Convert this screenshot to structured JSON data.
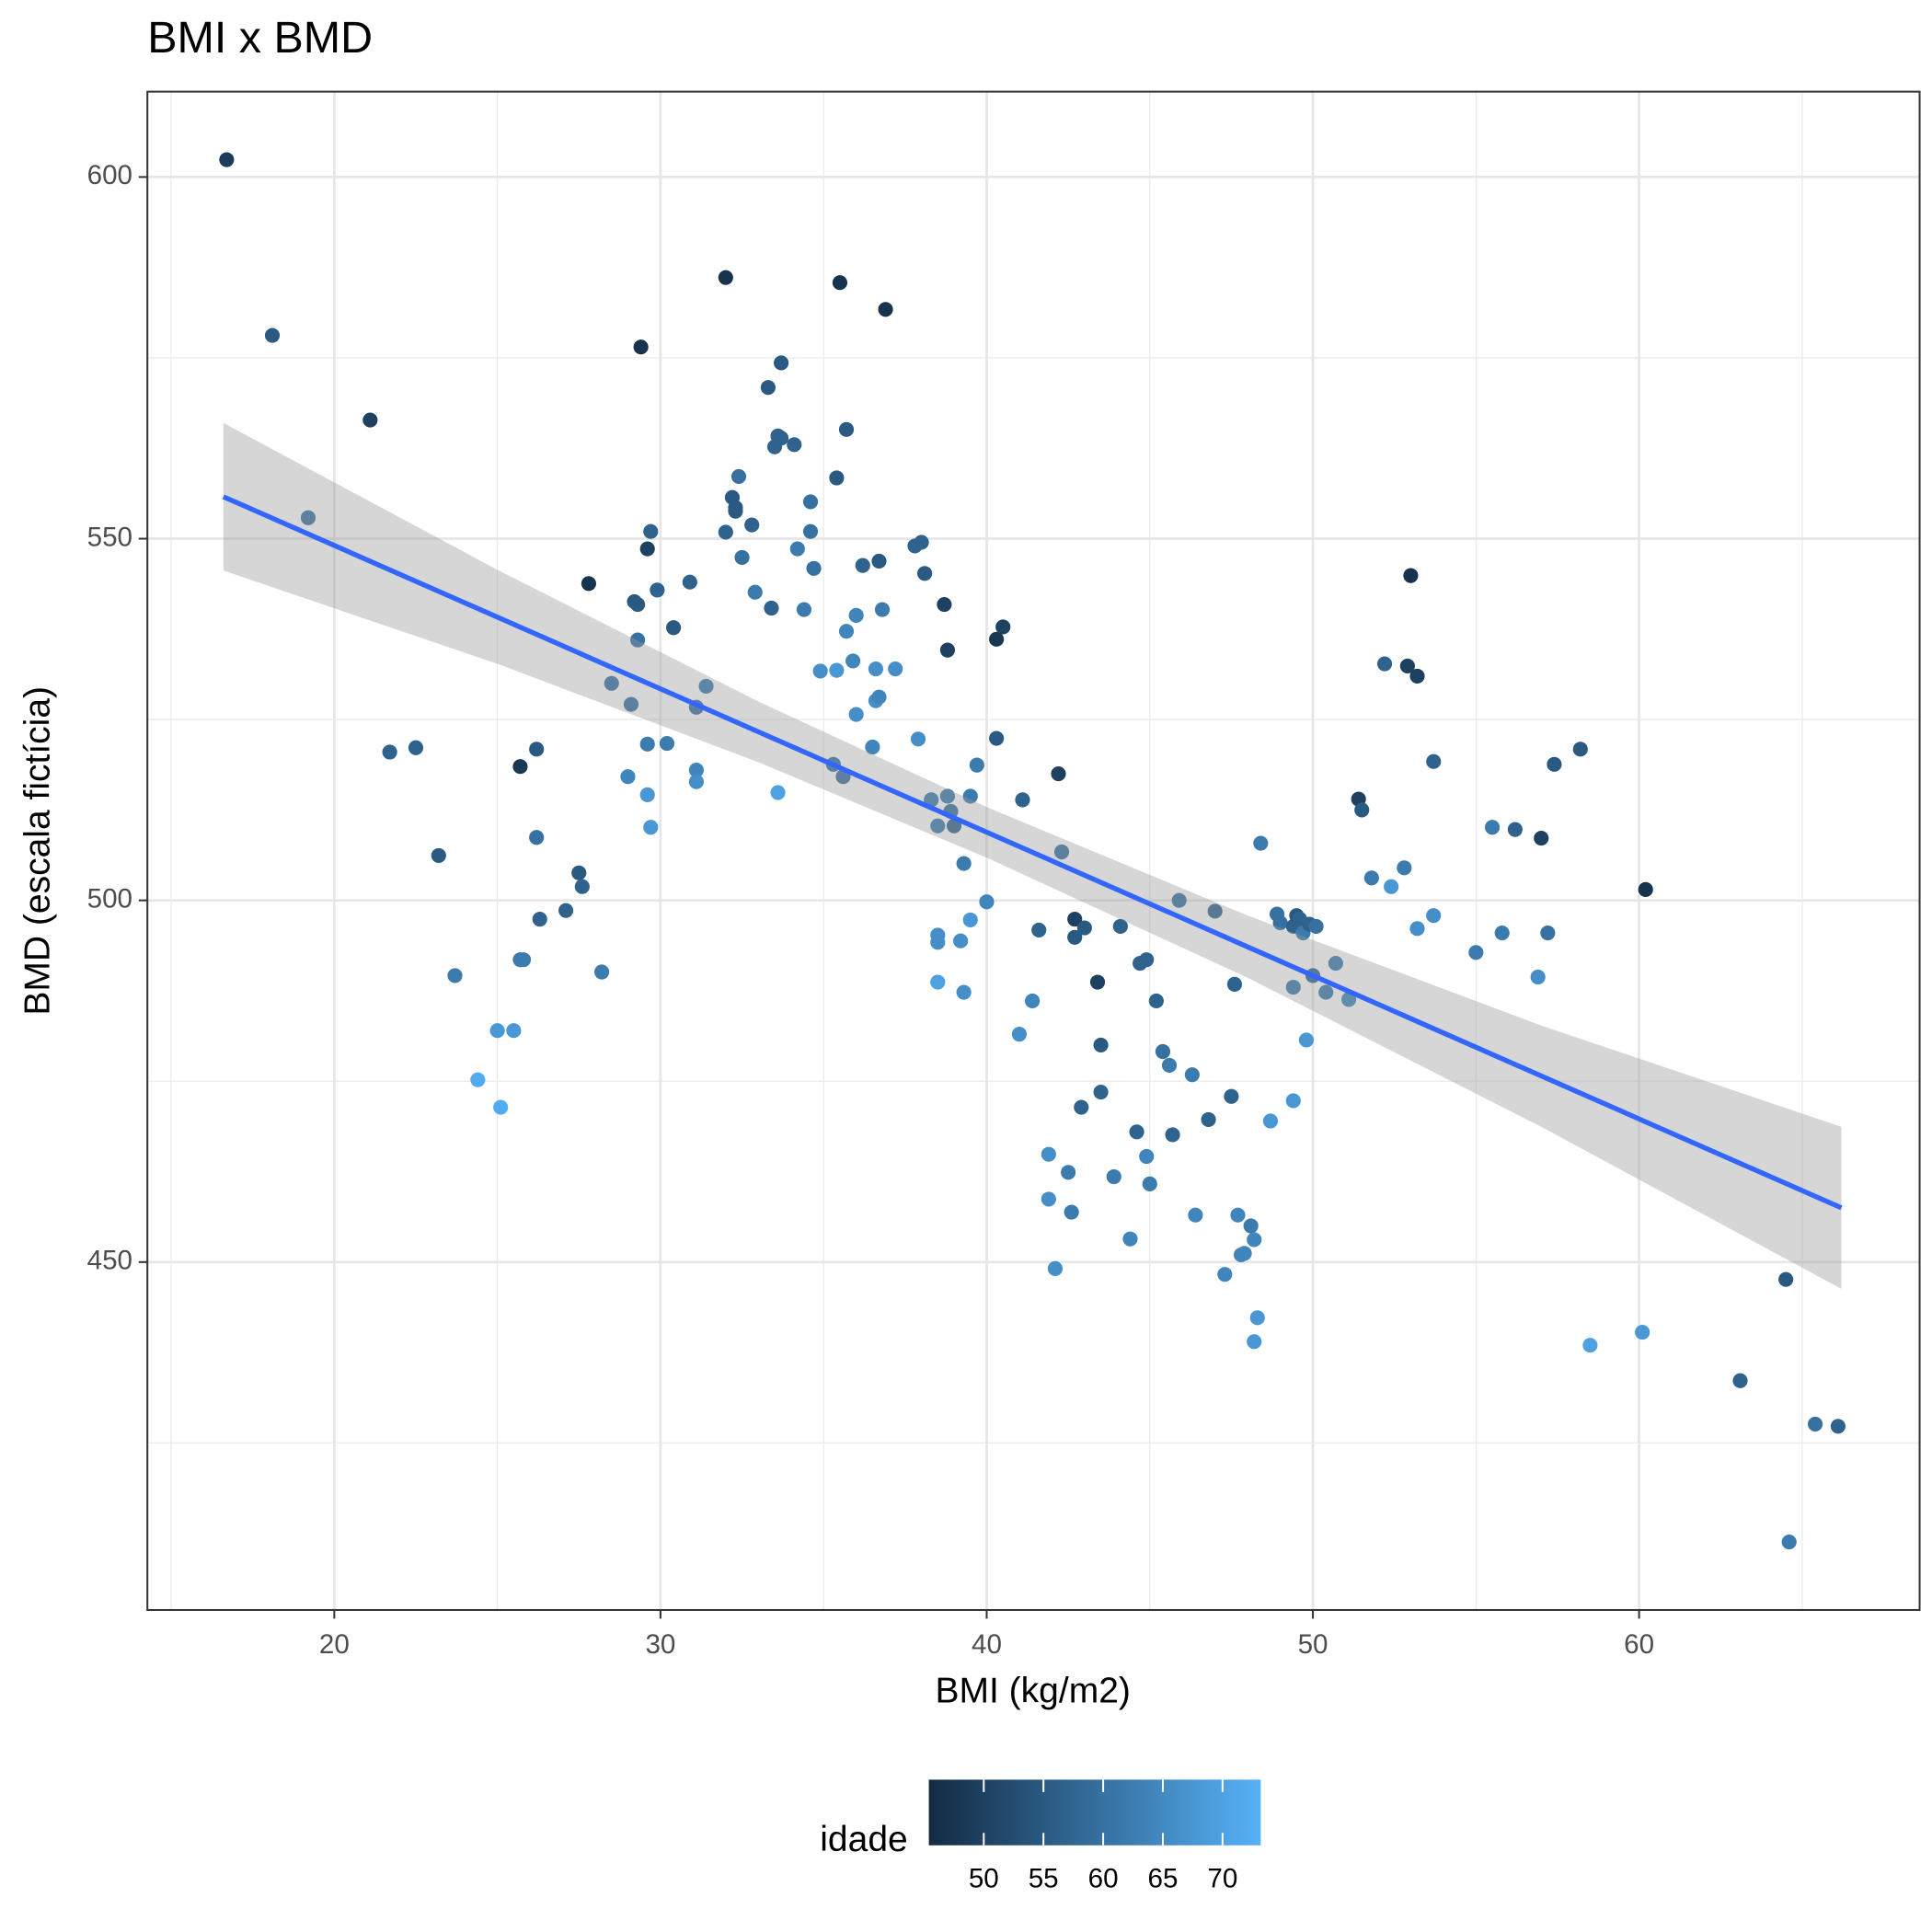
{
  "chart_data": {
    "type": "scatter",
    "title": "BMI x BMD",
    "x_label": "BMI (kg/m2)",
    "y_label": "BMD (escala fictícia)",
    "xlim": [
      14.27,
      68.6
    ],
    "ylim": [
      401.9,
      611.8
    ],
    "xticks": [
      20,
      30,
      40,
      50,
      60
    ],
    "yticks": [
      450,
      500,
      550,
      600
    ],
    "xminor": [
      15,
      25,
      35,
      45,
      55,
      65
    ],
    "yminor": [
      425,
      475,
      525,
      575
    ],
    "grid": true,
    "x": [
      16.7,
      18.1,
      19.2,
      21.1,
      21.7,
      22.5,
      23.2,
      23.7,
      24.4,
      25.0,
      25.1,
      25.5,
      25.7,
      25.8,
      25.7,
      26.2,
      26.2,
      26.3,
      27.1,
      27.5,
      27.6,
      27.8,
      28.2,
      28.5,
      29.0,
      29.1,
      29.2,
      29.3,
      29.4,
      29.3,
      29.6,
      29.7,
      29.6,
      29.6,
      29.7,
      29.9,
      30.2,
      30.4,
      30.9,
      31.1,
      31.1,
      31.1,
      31.4,
      32.0,
      32.0,
      32.2,
      32.3,
      32.3,
      32.4,
      32.5,
      32.8,
      32.9,
      33.3,
      33.4,
      33.5,
      33.6,
      33.7,
      33.7,
      33.6,
      34.1,
      34.2,
      34.4,
      34.6,
      34.6,
      34.7,
      34.9,
      35.3,
      35.4,
      35.4,
      35.5,
      35.6,
      35.7,
      35.7,
      35.9,
      36.0,
      36.0,
      36.2,
      36.5,
      36.6,
      36.6,
      36.7,
      36.7,
      36.8,
      36.9,
      37.2,
      37.8,
      37.9,
      38.0,
      38.1,
      38.3,
      38.5,
      38.5,
      38.5,
      38.5,
      38.7,
      38.8,
      38.8,
      38.9,
      39.0,
      39.2,
      39.3,
      39.3,
      39.5,
      39.5,
      39.7,
      40.0,
      40.3,
      40.5,
      40.3,
      41.0,
      41.1,
      41.4,
      41.6,
      41.9,
      41.9,
      42.1,
      42.2,
      42.3,
      42.5,
      42.6,
      42.7,
      42.7,
      42.9,
      43.0,
      43.4,
      43.5,
      43.5,
      43.9,
      44.1,
      44.4,
      44.6,
      44.7,
      44.9,
      44.9,
      45.0,
      45.2,
      45.4,
      45.6,
      45.7,
      45.9,
      46.3,
      46.4,
      46.8,
      47.0,
      47.3,
      47.5,
      47.6,
      47.7,
      47.8,
      47.9,
      48.1,
      48.2,
      48.2,
      48.3,
      48.4,
      48.7,
      48.9,
      49.0,
      49.4,
      49.4,
      49.4,
      49.5,
      49.6,
      49.7,
      49.8,
      49.9,
      50.0,
      50.1,
      50.4,
      50.7,
      51.1,
      51.4,
      51.5,
      51.8,
      52.2,
      52.4,
      52.8,
      52.9,
      53.0,
      53.2,
      53.2,
      53.7,
      53.7,
      55.0,
      55.5,
      55.8,
      56.2,
      56.9,
      57.0,
      57.2,
      57.4,
      58.2,
      58.5,
      60.1,
      60.2,
      63.1,
      64.5,
      64.6,
      65.4,
      66.1
    ],
    "values": [
      602.4,
      578.1,
      552.9,
      566.4,
      520.5,
      521.1,
      506.2,
      489.6,
      475.2,
      482.0,
      471.4,
      482.0,
      491.8,
      491.8,
      518.5,
      520.9,
      508.7,
      497.4,
      498.6,
      503.8,
      501.9,
      543.8,
      490.1,
      530.0,
      517.1,
      527.1,
      541.3,
      540.9,
      576.5,
      536.0,
      548.6,
      551.0,
      521.6,
      514.6,
      510.1,
      542.9,
      521.7,
      537.7,
      544.0,
      518.0,
      516.4,
      526.7,
      529.6,
      586.1,
      550.9,
      555.7,
      554.3,
      553.8,
      558.6,
      547.4,
      551.9,
      542.6,
      570.9,
      540.4,
      562.7,
      564.2,
      574.3,
      563.9,
      514.9,
      563.0,
      548.6,
      540.2,
      555.1,
      551.0,
      545.9,
      531.7,
      518.8,
      558.4,
      531.8,
      585.4,
      517.1,
      537.2,
      565.1,
      533.1,
      525.7,
      539.4,
      546.3,
      521.2,
      527.6,
      532.0,
      528.1,
      546.9,
      540.2,
      581.7,
      532.0,
      549.0,
      522.3,
      549.5,
      545.2,
      513.9,
      495.2,
      488.7,
      494.2,
      510.3,
      540.9,
      534.6,
      514.4,
      512.3,
      510.3,
      494.4,
      505.1,
      487.3,
      514.4,
      497.3,
      518.7,
      499.8,
      536.1,
      537.8,
      522.4,
      481.5,
      513.9,
      486.1,
      495.9,
      464.9,
      458.7,
      449.1,
      517.5,
      506.7,
      462.4,
      456.9,
      494.9,
      497.4,
      471.4,
      496.2,
      488.7,
      480.0,
      473.5,
      461.8,
      496.4,
      453.2,
      468.0,
      491.3,
      491.8,
      464.6,
      460.8,
      486.1,
      479.1,
      477.2,
      467.6,
      500.0,
      475.9,
      456.5,
      469.7,
      498.5,
      448.3,
      472.9,
      488.4,
      456.5,
      451.0,
      451.2,
      455.0,
      453.1,
      439.0,
      442.3,
      507.9,
      469.5,
      498.1,
      496.9,
      472.3,
      496.4,
      488.0,
      497.9,
      497.4,
      495.5,
      480.7,
      496.7,
      489.6,
      496.4,
      487.3,
      491.3,
      486.3,
      514.0,
      512.5,
      503.1,
      532.7,
      501.9,
      504.5,
      532.4,
      544.9,
      496.1,
      531.0,
      497.9,
      519.2,
      492.8,
      510.1,
      495.5,
      509.8,
      489.4,
      508.6,
      495.5,
      518.8,
      520.9,
      438.5,
      440.3,
      501.5,
      433.6,
      447.6,
      411.3,
      427.6,
      427.3
    ],
    "idade": [
      49,
      55,
      60,
      50,
      57,
      57,
      55,
      62,
      72,
      68,
      72,
      68,
      62,
      62,
      48,
      55,
      60,
      57,
      57,
      55,
      57,
      47,
      62,
      60,
      64,
      60,
      55,
      55,
      47,
      60,
      50,
      57,
      62,
      68,
      68,
      57,
      62,
      55,
      57,
      64,
      66,
      60,
      62,
      47,
      57,
      55,
      55,
      55,
      60,
      60,
      57,
      62,
      55,
      57,
      57,
      57,
      55,
      57,
      70,
      57,
      62,
      62,
      60,
      60,
      60,
      66,
      60,
      55,
      68,
      47,
      60,
      64,
      55,
      64,
      66,
      64,
      57,
      64,
      66,
      66,
      64,
      55,
      62,
      47,
      66,
      57,
      66,
      57,
      55,
      62,
      66,
      70,
      66,
      62,
      50,
      50,
      62,
      60,
      57,
      66,
      62,
      66,
      62,
      68,
      62,
      64,
      48,
      50,
      55,
      66,
      57,
      64,
      57,
      66,
      66,
      66,
      50,
      60,
      62,
      62,
      55,
      50,
      57,
      55,
      50,
      55,
      57,
      62,
      57,
      64,
      57,
      57,
      57,
      64,
      62,
      57,
      60,
      62,
      57,
      60,
      62,
      64,
      57,
      57,
      64,
      57,
      57,
      64,
      64,
      64,
      62,
      64,
      68,
      68,
      62,
      68,
      60,
      60,
      68,
      57,
      62,
      55,
      57,
      62,
      68,
      57,
      57,
      60,
      62,
      62,
      64,
      50,
      55,
      62,
      57,
      68,
      62,
      50,
      47,
      66,
      50,
      66,
      57,
      62,
      62,
      62,
      57,
      66,
      50,
      60,
      55,
      55,
      70,
      68,
      47,
      57,
      55,
      62,
      60,
      57
    ],
    "color_scale": {
      "title": "idade",
      "low": "#132B43",
      "high": "#56B1F7",
      "limits": [
        45.4,
        73.2
      ],
      "ticks": [
        50,
        55,
        60,
        65,
        70
      ]
    },
    "fit": {
      "x": [
        16.6,
        66.2
      ],
      "values": [
        555.8,
        457.5
      ],
      "color": "#3366FF"
    },
    "band": {
      "x": [
        16.6,
        25,
        33,
        40,
        48,
        57,
        66.2
      ],
      "lower": [
        545.6,
        532.7,
        519.1,
        505.9,
        489.3,
        468.7,
        446.3
      ],
      "upper": [
        566.0,
        545.7,
        527.5,
        512.9,
        497.9,
        482.7,
        468.7
      ],
      "color": "#999999"
    }
  }
}
